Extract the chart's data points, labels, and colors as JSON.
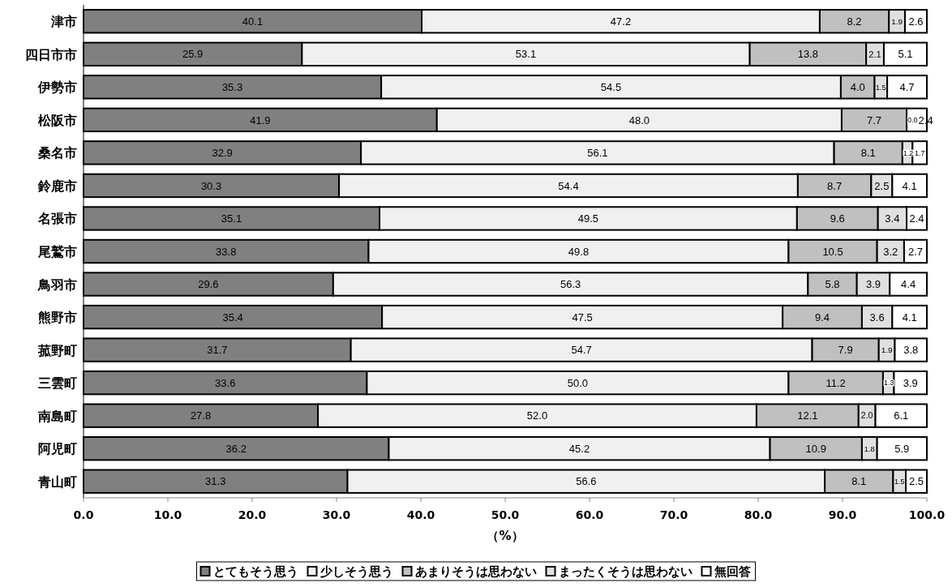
{
  "chart_data": {
    "type": "bar",
    "orientation": "horizontal",
    "stacked": true,
    "xlabel": "（%）",
    "legend": "bottom",
    "categories": [
      "津市",
      "四日市市",
      "伊勢市",
      "松阪市",
      "桑名市",
      "鈴鹿市",
      "名張市",
      "尾鷲市",
      "鳥羽市",
      "熊野市",
      "菰野町",
      "三雲町",
      "南島町",
      "阿児町",
      "青山町"
    ],
    "xlim": [
      0,
      100
    ],
    "xticks": [
      {
        "value": 0,
        "label": "0.0"
      },
      {
        "value": 10,
        "label": "10.0"
      },
      {
        "value": 20,
        "label": "20.0"
      },
      {
        "value": 30,
        "label": "30.0"
      },
      {
        "value": 40,
        "label": "40.0"
      },
      {
        "value": 50,
        "label": "50.0"
      },
      {
        "value": 60,
        "label": "60.0"
      },
      {
        "value": 70,
        "label": "70.0"
      },
      {
        "value": 80,
        "label": "80.0"
      },
      {
        "value": 90,
        "label": "90.0"
      },
      {
        "value": 100,
        "label": "100.0"
      }
    ],
    "series": [
      {
        "name": "とてもそう思う",
        "color": "#808080",
        "values": [
          40.1,
          25.9,
          35.3,
          41.9,
          32.9,
          30.3,
          35.1,
          33.8,
          29.6,
          35.4,
          31.7,
          33.6,
          27.8,
          36.2,
          31.3
        ],
        "value_labels": [
          "40.1",
          "25.9",
          "35.3",
          "41.9",
          "32.9",
          "30.3",
          "35.1",
          "33.8",
          "29.6",
          "35.4",
          "31.7",
          "33.6",
          "27.8",
          "36.2",
          "31.3"
        ]
      },
      {
        "name": "少しそう思う",
        "color": "#f0f0f0",
        "values": [
          47.2,
          53.1,
          54.5,
          48.0,
          56.1,
          54.4,
          49.5,
          49.8,
          56.3,
          47.5,
          54.7,
          50.0,
          52.0,
          45.2,
          56.6
        ],
        "value_labels": [
          "47.2",
          "53.1",
          "54.5",
          "48.0",
          "56.1",
          "54.4",
          "49.5",
          "49.8",
          "56.3",
          "47.5",
          "54.7",
          "50.0",
          "52.0",
          "45.2",
          "56.6"
        ]
      },
      {
        "name": "あまりそうは思わない",
        "color": "#c0c0c0",
        "values": [
          8.2,
          13.8,
          4.0,
          7.7,
          8.1,
          8.7,
          9.6,
          10.5,
          5.8,
          9.4,
          7.9,
          11.2,
          12.1,
          10.9,
          8.1
        ],
        "value_labels": [
          "8.2",
          "13.8",
          "4.0",
          "7.7",
          "8.1",
          "8.7",
          "9.6",
          "10.5",
          "5.8",
          "9.4",
          "7.9",
          "11.2",
          "12.1",
          "10.9",
          "8.1"
        ]
      },
      {
        "name": "まったくそうは思わない",
        "color": "#e0e0e0",
        "values": [
          1.9,
          2.1,
          1.5,
          0.0,
          1.2,
          2.5,
          3.4,
          3.2,
          3.9,
          3.6,
          1.9,
          1.3,
          2.0,
          1.8,
          1.5
        ],
        "value_labels": [
          "1.9",
          "2.1",
          "1.5",
          "0.0",
          "1.2",
          "2.5",
          "3.4",
          "3.2",
          "3.9",
          "3.6",
          "1.9",
          "1.3",
          "2.0",
          "1.8",
          "1.5"
        ]
      },
      {
        "name": "無回答",
        "color": "#ffffff",
        "values": [
          2.6,
          5.1,
          4.7,
          2.4,
          1.7,
          4.1,
          2.4,
          2.7,
          4.4,
          4.1,
          3.8,
          3.9,
          6.1,
          5.9,
          2.5
        ],
        "value_labels": [
          "2.6",
          "5.1",
          "4.7",
          "2.4",
          "1.7",
          "4.1",
          "2.4",
          "2.7",
          "4.4",
          "4.1",
          "3.8",
          "3.9",
          "6.1",
          "5.9",
          "2.5"
        ]
      }
    ]
  }
}
